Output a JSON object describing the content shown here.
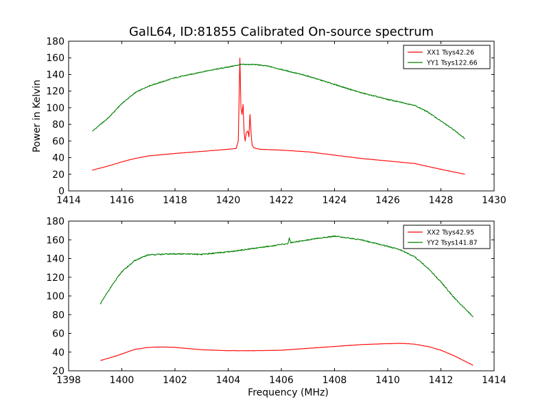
{
  "figure_title": "GalL64, ID:81855 Calibrated On-source spectrum",
  "colors": {
    "xx": "#ff0000",
    "yy": "#008000",
    "axes": "#000000"
  },
  "chart_data": [
    {
      "type": "line",
      "title": "GalL64, ID:81855 Calibrated On-source spectrum",
      "xlabel": "",
      "ylabel": "Power in Kelvin",
      "xlim": [
        1414,
        1430
      ],
      "ylim": [
        0,
        180
      ],
      "xticks": [
        1414,
        1416,
        1418,
        1420,
        1422,
        1424,
        1426,
        1428,
        1430
      ],
      "yticks": [
        0,
        20,
        40,
        60,
        80,
        100,
        120,
        140,
        160,
        180
      ],
      "legend": "top-right",
      "grid": false,
      "series": [
        {
          "name": "XX1 Tsys42.26",
          "color": "#ff0000",
          "x": [
            1414.9,
            1415.5,
            1416,
            1416.5,
            1417,
            1418,
            1419,
            1420,
            1420.3,
            1420.38,
            1420.44,
            1420.48,
            1420.52,
            1420.56,
            1420.6,
            1420.64,
            1420.68,
            1420.74,
            1420.78,
            1420.82,
            1420.86,
            1420.9,
            1420.96,
            1421.05,
            1421.2,
            1422,
            1423,
            1424,
            1425,
            1426,
            1427,
            1428,
            1428.9
          ],
          "y": [
            25,
            30,
            35,
            39,
            42,
            45,
            47.5,
            50,
            51,
            60,
            160,
            100,
            92,
            104,
            70,
            60,
            70,
            72,
            65,
            92,
            70,
            55,
            52,
            51,
            50,
            49,
            47,
            43,
            39,
            36,
            33,
            26,
            20
          ]
        },
        {
          "name": "YY1 Tsys122.66",
          "color": "#008000",
          "x": [
            1414.9,
            1415.5,
            1416,
            1416.5,
            1417,
            1418,
            1419,
            1420,
            1420.5,
            1421,
            1421.5,
            1422,
            1423,
            1424,
            1425,
            1426,
            1427,
            1427.5,
            1428,
            1428.5,
            1428.9
          ],
          "y": [
            72,
            88,
            105,
            118,
            126,
            136,
            143,
            149,
            152,
            152,
            150,
            146,
            138,
            128,
            118,
            110,
            103,
            95,
            84,
            73,
            63
          ]
        }
      ]
    },
    {
      "type": "line",
      "title": "",
      "xlabel": "Frequency (MHz)",
      "ylabel": "",
      "xlim": [
        1398,
        1414
      ],
      "ylim": [
        20,
        180
      ],
      "xticks": [
        1398,
        1400,
        1402,
        1404,
        1406,
        1408,
        1410,
        1412,
        1414
      ],
      "yticks": [
        20,
        40,
        60,
        80,
        100,
        120,
        140,
        160,
        180
      ],
      "legend": "top-right",
      "grid": false,
      "series": [
        {
          "name": "XX2 Tsys42.95",
          "color": "#ff0000",
          "x": [
            1399.2,
            1399.8,
            1400.5,
            1401,
            1401.5,
            1402,
            1403,
            1404,
            1405,
            1406,
            1407,
            1408,
            1409,
            1410,
            1410.5,
            1411,
            1411.5,
            1412,
            1412.5,
            1413.2
          ],
          "y": [
            31,
            36,
            43,
            45,
            45.5,
            45,
            42.5,
            41.5,
            41.5,
            42,
            44,
            46,
            48,
            49,
            49.3,
            48.5,
            46,
            42,
            36,
            26
          ]
        },
        {
          "name": "YY2 Tsys141.87",
          "color": "#008000",
          "x": [
            1399.2,
            1399.6,
            1400,
            1400.5,
            1401,
            1402,
            1403,
            1404,
            1405,
            1406,
            1406.25,
            1406.3,
            1406.35,
            1407,
            1408,
            1409,
            1410,
            1410.5,
            1411,
            1411.5,
            1412,
            1412.5,
            1413.2
          ],
          "y": [
            92,
            110,
            126,
            138,
            144,
            145,
            144.5,
            147,
            151,
            155,
            156,
            162,
            157,
            160,
            164,
            160,
            153,
            149,
            142,
            130,
            115,
            98,
            78
          ]
        }
      ]
    }
  ]
}
